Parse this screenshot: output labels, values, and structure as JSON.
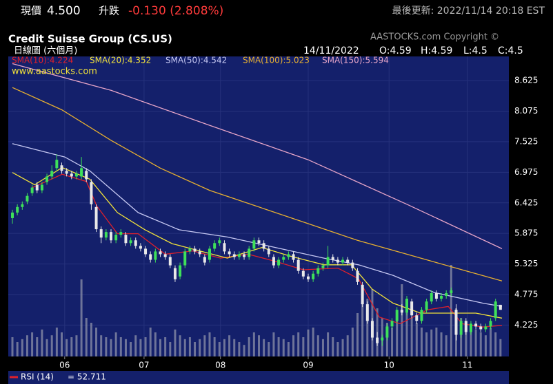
{
  "header": {
    "price_label": "現價",
    "price": "4.500",
    "change_label": "升跌",
    "change": "-0.130 (2.808%)",
    "updated": "最後更新: 2022/11/14 20:18 EST"
  },
  "chart_data": {
    "type": "candlestick",
    "title": "Credit Suisse Group (CS.US)",
    "subtitle": "日線圖 (六個月)",
    "copyright": "AASTOCKS.com Copyright ©",
    "source": "www.aastocks.com",
    "quote": {
      "date": "14/11/2022",
      "open": "O:4.59",
      "high": "H:4.59",
      "low": "L:4.5",
      "close": "C:4.5"
    },
    "xlim": [
      -0.84,
      100.7
    ],
    "xticks": [
      {
        "value": 10.6,
        "label": "06"
      },
      {
        "value": 26.7,
        "label": "07"
      },
      {
        "value": 42.2,
        "label": "08"
      },
      {
        "value": 60,
        "label": "09"
      },
      {
        "value": 76.4,
        "label": "10"
      },
      {
        "value": 92.3,
        "label": "11"
      }
    ],
    "ylim": [
      3.66,
      9.06
    ],
    "yticks": [
      4.225,
      4.775,
      5.325,
      5.875,
      6.425,
      6.975,
      7.525,
      8.075,
      8.625
    ],
    "grid": true,
    "up_color": "#3ee05a",
    "down_color": "#e8e8e8",
    "candles": {
      "x": [
        0,
        1,
        2,
        3,
        4,
        5,
        6,
        7,
        8,
        9,
        10,
        11,
        12,
        13,
        14,
        15,
        16,
        17,
        18,
        19,
        20,
        21,
        22,
        23,
        24,
        25,
        26,
        27,
        28,
        29,
        30,
        31,
        32,
        33,
        34,
        35,
        36,
        37,
        38,
        39,
        40,
        41,
        42,
        43,
        44,
        45,
        46,
        47,
        48,
        49,
        50,
        51,
        52,
        53,
        54,
        55,
        56,
        57,
        58,
        59,
        60,
        61,
        62,
        63,
        64,
        65,
        66,
        67,
        68,
        69,
        70,
        71,
        72,
        73,
        74,
        75,
        76,
        77,
        78,
        79,
        80,
        81,
        82,
        83,
        84,
        85,
        86,
        87,
        88,
        89,
        90,
        91,
        92,
        93,
        94,
        95,
        96,
        97,
        98,
        99
      ],
      "open": [
        6.15,
        6.25,
        6.35,
        6.45,
        6.6,
        6.75,
        6.65,
        6.8,
        6.9,
        7.05,
        7.1,
        7.0,
        6.95,
        6.9,
        6.9,
        7.0,
        6.8,
        6.35,
        5.95,
        5.8,
        5.9,
        5.75,
        5.85,
        5.85,
        5.7,
        5.75,
        5.65,
        5.6,
        5.5,
        5.4,
        5.55,
        5.5,
        5.45,
        5.25,
        5.1,
        5.3,
        5.55,
        5.6,
        5.55,
        5.45,
        5.4,
        5.6,
        5.7,
        5.7,
        5.55,
        5.5,
        5.45,
        5.5,
        5.45,
        5.6,
        5.75,
        5.7,
        5.6,
        5.45,
        5.3,
        5.4,
        5.45,
        5.5,
        5.4,
        5.2,
        5.1,
        5.05,
        5.15,
        5.25,
        5.3,
        5.45,
        5.4,
        5.35,
        5.4,
        5.35,
        5.2,
        4.95,
        4.6,
        4.3,
        4.0,
        3.95,
        4.0,
        4.2,
        4.3,
        4.5,
        4.45,
        4.65,
        4.4,
        4.3,
        4.5,
        4.65,
        4.8,
        4.7,
        4.75,
        4.8,
        4.5,
        4.05,
        4.3,
        4.1,
        4.25,
        4.2,
        4.15,
        4.2,
        4.35,
        4.59
      ],
      "high": [
        6.3,
        6.4,
        6.45,
        6.6,
        6.75,
        6.8,
        6.8,
        6.95,
        7.1,
        7.3,
        7.15,
        7.05,
        7.0,
        7.0,
        7.25,
        7.05,
        6.85,
        6.4,
        6.0,
        5.95,
        5.95,
        5.9,
        5.95,
        5.9,
        5.8,
        5.8,
        5.7,
        5.65,
        5.55,
        5.6,
        5.6,
        5.55,
        5.5,
        5.3,
        5.35,
        5.6,
        5.65,
        5.65,
        5.6,
        5.5,
        5.65,
        5.75,
        5.8,
        5.75,
        5.6,
        5.55,
        5.55,
        5.55,
        5.65,
        5.8,
        5.8,
        5.75,
        5.65,
        5.5,
        5.45,
        5.5,
        5.55,
        5.55,
        5.45,
        5.25,
        5.15,
        5.2,
        5.3,
        5.35,
        5.65,
        5.5,
        5.45,
        5.45,
        5.45,
        5.4,
        5.25,
        5.0,
        4.65,
        4.35,
        4.1,
        4.05,
        4.25,
        4.35,
        4.55,
        4.6,
        4.75,
        4.7,
        4.45,
        4.55,
        4.7,
        4.85,
        4.85,
        4.8,
        4.85,
        4.9,
        4.6,
        4.35,
        4.35,
        4.3,
        4.3,
        4.25,
        4.25,
        4.35,
        4.7,
        4.59
      ],
      "low": [
        6.05,
        6.2,
        6.3,
        6.4,
        6.55,
        6.6,
        6.6,
        6.75,
        6.85,
        7.0,
        6.95,
        6.9,
        6.85,
        6.85,
        6.85,
        6.8,
        6.3,
        5.9,
        5.7,
        5.75,
        5.7,
        5.7,
        5.8,
        5.65,
        5.65,
        5.6,
        5.55,
        5.45,
        5.35,
        5.35,
        5.45,
        5.4,
        5.25,
        5.0,
        5.05,
        5.25,
        5.5,
        5.5,
        5.45,
        5.3,
        5.35,
        5.55,
        5.65,
        5.5,
        5.45,
        5.4,
        5.4,
        5.4,
        5.4,
        5.55,
        5.65,
        5.55,
        5.45,
        5.25,
        5.25,
        5.35,
        5.4,
        5.35,
        5.15,
        5.05,
        5.0,
        5.0,
        5.1,
        5.2,
        5.25,
        5.35,
        5.3,
        5.3,
        5.3,
        5.2,
        4.95,
        4.55,
        4.25,
        3.95,
        3.85,
        3.85,
        3.95,
        4.15,
        4.25,
        4.4,
        4.4,
        4.35,
        4.25,
        4.25,
        4.45,
        4.6,
        4.65,
        4.65,
        4.7,
        4.75,
        3.95,
        4.0,
        4.05,
        4.05,
        4.15,
        4.1,
        4.1,
        4.15,
        4.3,
        4.5
      ],
      "close": [
        6.25,
        6.35,
        6.4,
        6.55,
        6.7,
        6.65,
        6.75,
        6.9,
        7.0,
        7.2,
        7.0,
        6.95,
        6.9,
        6.95,
        7.05,
        6.85,
        6.4,
        5.95,
        5.8,
        5.9,
        5.75,
        5.85,
        5.9,
        5.7,
        5.75,
        5.65,
        5.6,
        5.5,
        5.4,
        5.55,
        5.5,
        5.45,
        5.3,
        5.05,
        5.3,
        5.55,
        5.6,
        5.55,
        5.5,
        5.35,
        5.6,
        5.7,
        5.75,
        5.55,
        5.5,
        5.45,
        5.5,
        5.45,
        5.6,
        5.75,
        5.7,
        5.6,
        5.5,
        5.3,
        5.4,
        5.45,
        5.5,
        5.4,
        5.2,
        5.1,
        5.05,
        5.15,
        5.25,
        5.3,
        5.45,
        5.4,
        5.35,
        5.4,
        5.35,
        5.25,
        5.0,
        4.6,
        4.3,
        4.0,
        3.9,
        4.0,
        4.2,
        4.3,
        4.5,
        4.45,
        4.7,
        4.4,
        4.3,
        4.5,
        4.65,
        4.8,
        4.7,
        4.75,
        4.8,
        4.85,
        4.05,
        4.3,
        4.1,
        4.25,
        4.2,
        4.15,
        4.2,
        4.3,
        4.65,
        4.5
      ]
    },
    "volume": {
      "color": "#8c90a8",
      "ylim": [
        0,
        100
      ],
      "values": [
        20,
        15,
        18,
        22,
        25,
        20,
        28,
        18,
        22,
        30,
        25,
        18,
        20,
        22,
        80,
        40,
        35,
        30,
        22,
        20,
        18,
        25,
        20,
        18,
        15,
        22,
        18,
        20,
        30,
        25,
        18,
        20,
        15,
        28,
        22,
        18,
        20,
        15,
        18,
        22,
        25,
        20,
        15,
        18,
        22,
        18,
        15,
        12,
        20,
        25,
        22,
        18,
        15,
        25,
        20,
        18,
        15,
        22,
        25,
        20,
        28,
        30,
        22,
        18,
        25,
        20,
        15,
        18,
        22,
        30,
        45,
        55,
        60,
        70,
        50,
        40,
        35,
        30,
        45,
        75,
        55,
        40,
        35,
        30,
        25,
        28,
        30,
        25,
        22,
        95,
        50,
        40,
        35,
        30,
        28,
        25,
        22,
        30,
        25,
        18
      ]
    },
    "series": [
      {
        "name": "SMA(10):4.224",
        "color": "#e0202a",
        "x": [
          3.8,
          10.1,
          15,
          17.1,
          21.3,
          25.5,
          31,
          36.6,
          42.2,
          47.8,
          53.4,
          59,
          66,
          70.2,
          74.4,
          78.6,
          84.2,
          88.4,
          91.2,
          95.4,
          99.3
        ],
        "values": [
          6.69,
          6.94,
          6.81,
          6.37,
          5.87,
          5.87,
          5.5,
          5.56,
          5.43,
          5.5,
          5.37,
          5.22,
          5.25,
          5.06,
          4.37,
          4.25,
          4.5,
          4.56,
          4.25,
          4.19,
          4.22
        ]
      },
      {
        "name": "SMA(20):4.352",
        "color": "#f2e23a",
        "x": [
          0,
          4.5,
          10.1,
          15.7,
          21.3,
          26.9,
          32.4,
          38,
          43.6,
          50.6,
          56.2,
          63.2,
          68.8,
          73,
          77.2,
          82.8,
          88.4,
          94,
          99.3
        ],
        "values": [
          6.97,
          6.75,
          7.06,
          6.85,
          6.25,
          5.94,
          5.69,
          5.56,
          5.43,
          5.62,
          5.47,
          5.31,
          5.31,
          4.87,
          4.62,
          4.44,
          4.44,
          4.44,
          4.35
        ]
      },
      {
        "name": "SMA(50):4.542",
        "color": "#c6c8f2",
        "x": [
          0,
          10.6,
          15.7,
          25.5,
          33.8,
          43.6,
          53.4,
          63.2,
          70.2,
          77.2,
          85.6,
          95.4,
          99.3
        ],
        "values": [
          7.49,
          7.25,
          7.0,
          6.25,
          5.94,
          5.81,
          5.62,
          5.43,
          5.31,
          5.12,
          4.81,
          4.62,
          4.56
        ]
      },
      {
        "name": "SMA(100):5.023",
        "color": "#e8b030",
        "x": [
          0,
          10,
          20,
          30,
          40,
          50,
          60,
          70,
          80,
          90,
          99.3
        ],
        "values": [
          8.5,
          8.1,
          7.55,
          7.05,
          6.65,
          6.35,
          6.05,
          5.75,
          5.5,
          5.25,
          5.02
        ]
      },
      {
        "name": "SMA(150):5.594",
        "color": "#e8a6c8",
        "x": [
          0,
          20,
          40,
          60,
          80,
          99.3
        ],
        "values": [
          8.93,
          8.45,
          7.82,
          7.2,
          6.4,
          5.6
        ]
      }
    ],
    "rsi": {
      "name": "RSI (14)",
      "value_label": "= 52.711",
      "color": "#e0202a"
    }
  }
}
